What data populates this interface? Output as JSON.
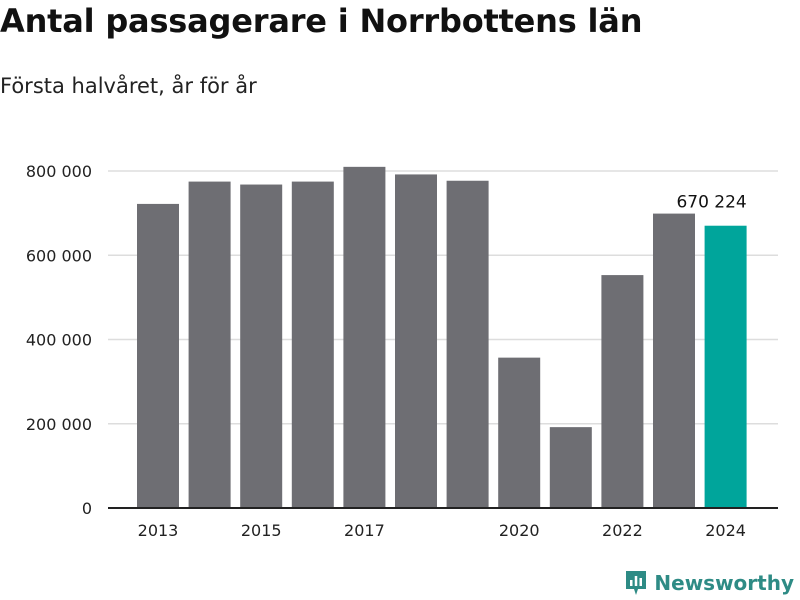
{
  "title": "Antal passagerare i Norrbottens län",
  "subtitle": "Första halvåret, år för år",
  "brand": {
    "name": "Newsworthy",
    "color": "#2e8b85",
    "icon": "newsworthy-logo-icon"
  },
  "colors": {
    "bar": "#6e6e73",
    "highlight": "#00a59b",
    "grid": "#dddddd",
    "axis": "#222222"
  },
  "chart_data": {
    "type": "bar",
    "categories": [
      "2013",
      "2014",
      "2015",
      "2016",
      "2017",
      "2018",
      "2019",
      "2020",
      "2021",
      "2022",
      "2023",
      "2024"
    ],
    "values": [
      722000,
      775000,
      768000,
      775000,
      810000,
      792000,
      777000,
      357000,
      192000,
      553000,
      699000,
      670224
    ],
    "highlight_index": 11,
    "x_tick_labels": [
      "2013",
      "2015",
      "2017",
      "2020",
      "2022",
      "2024"
    ],
    "y_ticks": [
      0,
      200000,
      400000,
      600000,
      800000
    ],
    "y_tick_labels": [
      "0",
      "200 000",
      "400 000",
      "600 000",
      "800 000"
    ],
    "ylim": [
      0,
      850000
    ],
    "data_labels": [
      {
        "index": 11,
        "text": "670 224"
      }
    ],
    "grid": true
  }
}
